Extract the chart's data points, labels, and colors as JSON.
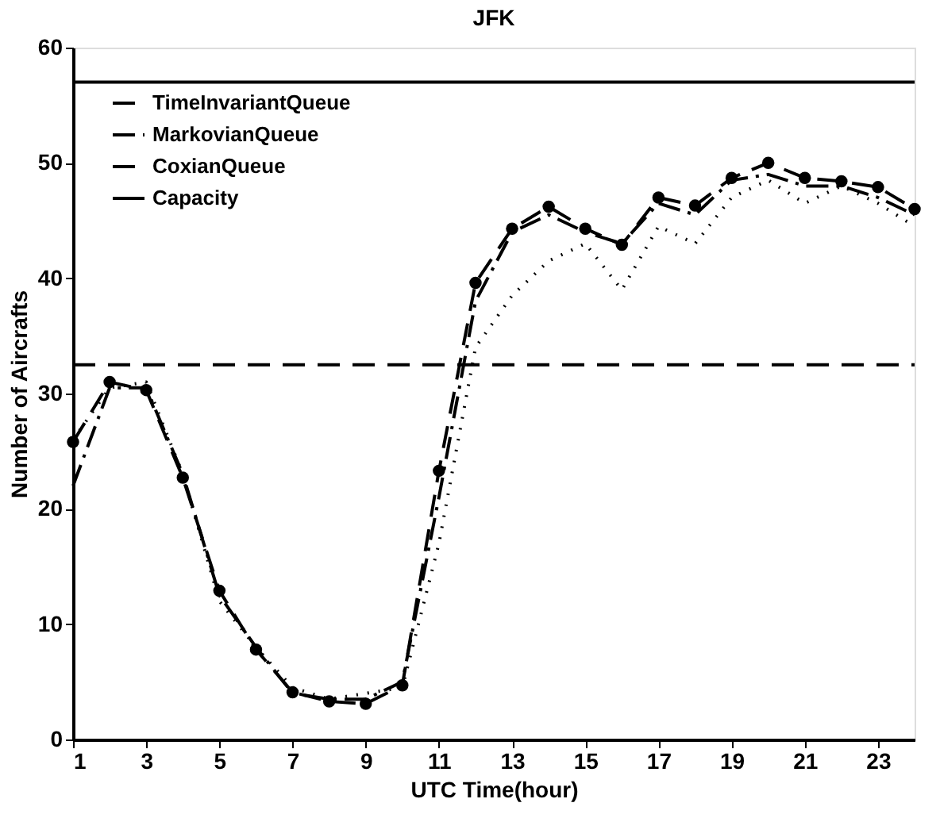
{
  "chart_data": {
    "type": "line",
    "title": "JFK",
    "xlabel": "UTC Time(hour)",
    "ylabel": "Number of Aircrafts",
    "x": [
      1,
      2,
      3,
      4,
      5,
      6,
      7,
      8,
      9,
      10,
      11,
      12,
      13,
      14,
      15,
      16,
      17,
      18,
      19,
      20,
      21,
      22,
      23,
      24
    ],
    "xlim": [
      1,
      24
    ],
    "xticks": [
      1,
      3,
      5,
      7,
      9,
      11,
      13,
      15,
      17,
      19,
      21,
      23
    ],
    "ylim": [
      0,
      60
    ],
    "yticks": [
      0,
      10,
      20,
      30,
      40,
      50,
      60
    ],
    "grid": false,
    "legend": "top left",
    "series": [
      {
        "color": "#000000",
        "line_style": "dotted",
        "marker": "none",
        "values": [
          26,
          30.5,
          31,
          23,
          12,
          8,
          4.5,
          3.5,
          4,
          4.5,
          17,
          34,
          38.5,
          41.5,
          43,
          39,
          44.5,
          43,
          47,
          48.5,
          46.5,
          48,
          46.5,
          44.5
        ]
      },
      {
        "name": "TimeInvariantQueue",
        "color": "#000000",
        "line_style": "dashed",
        "marker": "none",
        "values": [
          32.5,
          32.5,
          32.5,
          32.5,
          32.5,
          32.5,
          32.5,
          32.5,
          32.5,
          32.5,
          32.5,
          32.5,
          32.5,
          32.5,
          32.5,
          32.5,
          32.5,
          32.5,
          32.5,
          32.5,
          32.5,
          32.5,
          32.5,
          32.5
        ]
      },
      {
        "name": "MarkovianQueue",
        "color": "#000000",
        "line_style": "dashdot",
        "marker": "none",
        "values": [
          22,
          30.5,
          30.5,
          23,
          12.5,
          8,
          4,
          3.5,
          3.5,
          5,
          21,
          38,
          44,
          45.5,
          44,
          43,
          46.5,
          45.5,
          48.5,
          49,
          48,
          48,
          47,
          45.5
        ]
      },
      {
        "name": "CoxianQueue",
        "color": "#000000",
        "line_style": "dashed",
        "marker": "circle",
        "values": [
          25.8,
          31,
          30.3,
          22.7,
          12.9,
          7.8,
          4.1,
          3.3,
          3.1,
          4.7,
          23.3,
          39.6,
          44.3,
          46.2,
          44.3,
          42.9,
          47,
          46.3,
          48.7,
          50,
          48.7,
          48.4,
          47.9,
          46
        ]
      },
      {
        "name": "Capacity",
        "color": "#000000",
        "line_style": "solid",
        "marker": "none",
        "values": [
          57,
          57,
          57,
          57,
          57,
          57,
          57,
          57,
          57,
          57,
          57,
          57,
          57,
          57,
          57,
          57,
          57,
          57,
          57,
          57,
          57,
          57,
          57,
          57
        ]
      }
    ]
  }
}
